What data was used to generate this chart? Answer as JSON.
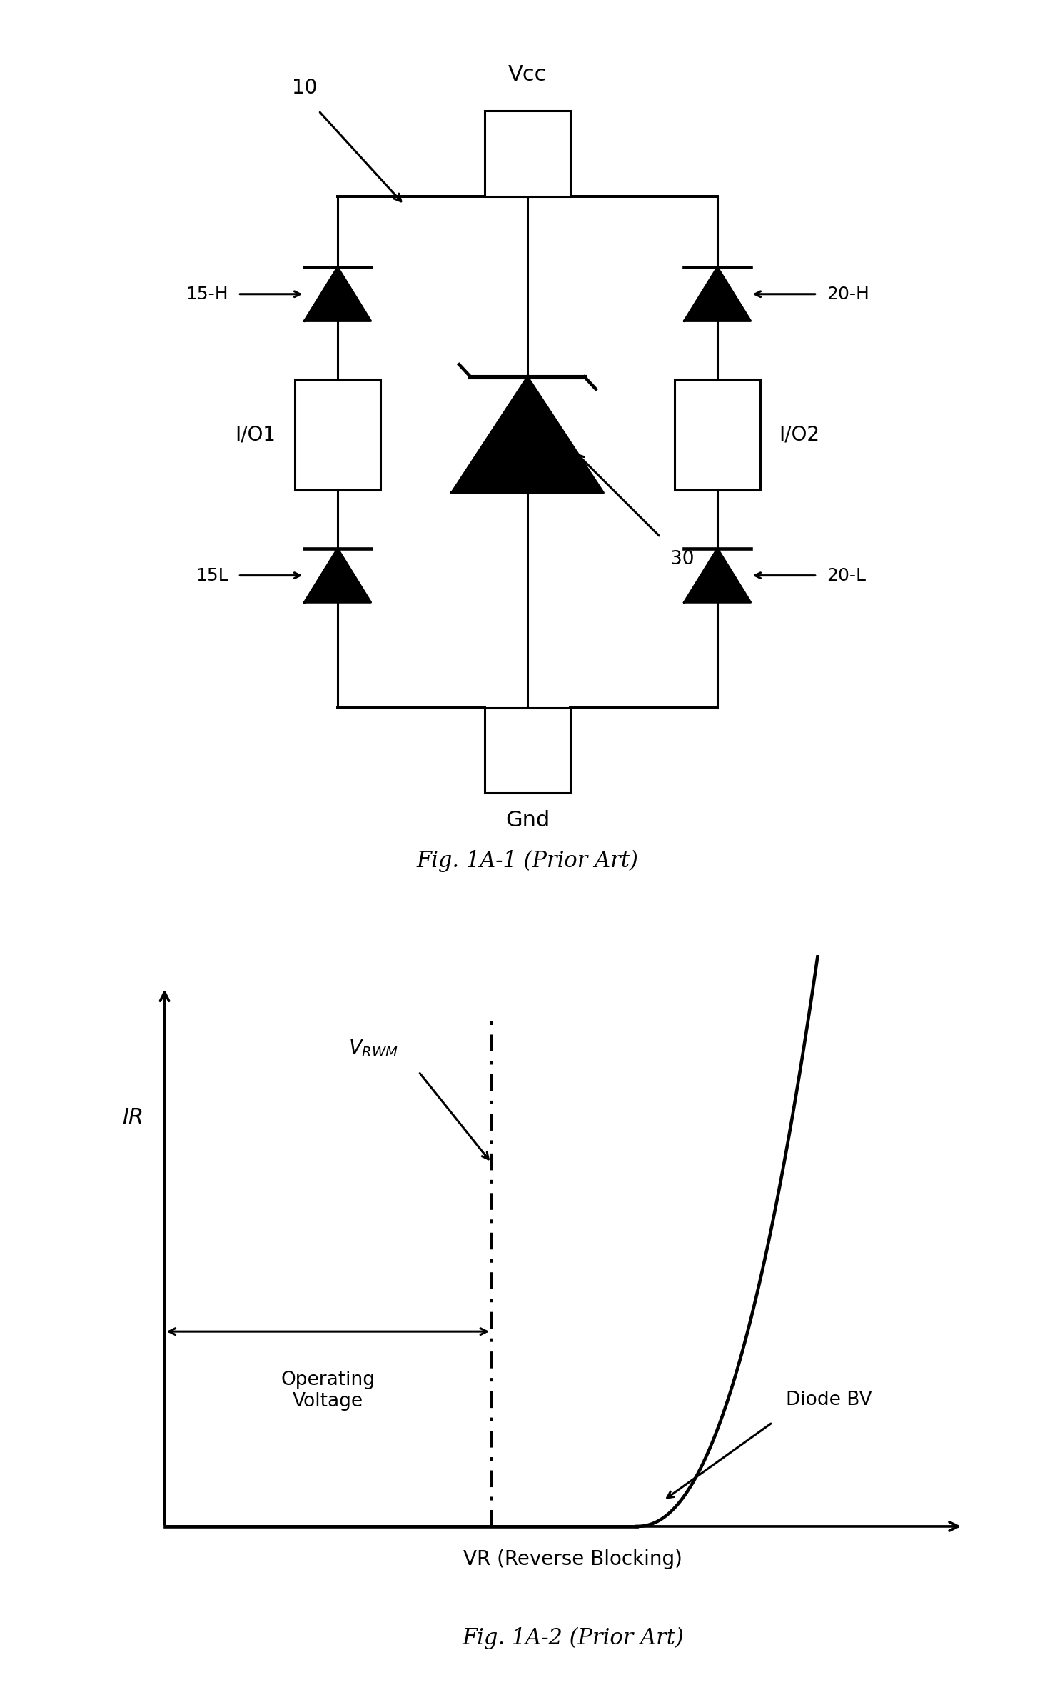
{
  "fig_width": 14.78,
  "fig_height": 23.87,
  "bg_color": "#ffffff",
  "fig1_caption": "Fig. 1A-1 (Prior Art)",
  "fig2_caption": "Fig. 1A-2 (Prior Art)",
  "label_10": "10",
  "label_vcc": "Vcc",
  "label_gnd": "Gnd",
  "label_15H": "15-H",
  "label_15L": "15L",
  "label_20H": "20-H",
  "label_20L": "20-L",
  "label_io1": "I/O1",
  "label_io2": "I/O2",
  "label_30": "30",
  "ir_label": "IR",
  "vr_label": "VR (Reverse Blocking)",
  "vrwm_label": "V_RWM",
  "op_voltage_label": "Operating\nVoltage",
  "diode_bv_label": "Diode BV",
  "line_color": "#000000",
  "line_width": 2.2
}
